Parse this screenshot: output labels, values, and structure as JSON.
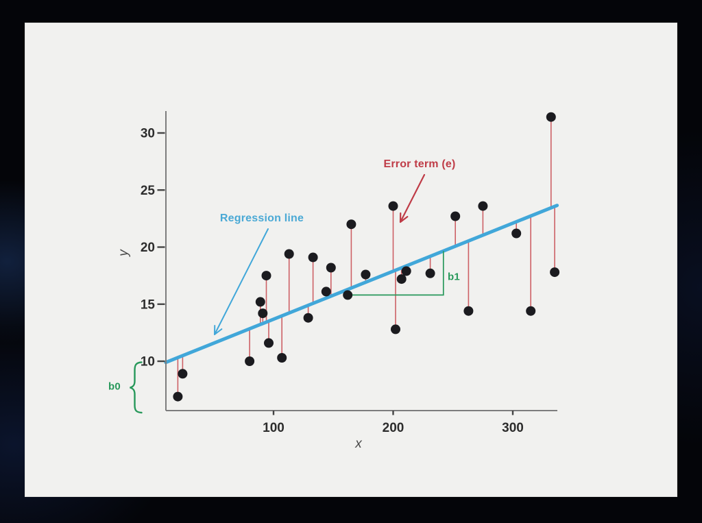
{
  "colors": {
    "background": "#040509",
    "card": "#f1f1ef",
    "line_blue": "#41a7d9",
    "label_blue": "#4aa9d5",
    "residual_red": "#cd6065",
    "annotation_red": "#bf3c47",
    "green": "#27985a",
    "dot": "#1b1b1f",
    "axis": "#7d7d7d",
    "tick_text": "#2d2d2d"
  },
  "chart_data": {
    "type": "scatter",
    "title": "",
    "xlabel": "x",
    "ylabel": "y",
    "x_ticks": [
      100,
      200,
      300
    ],
    "y_ticks": [
      10,
      15,
      20,
      25,
      30
    ],
    "xlim": [
      10,
      337
    ],
    "ylim": [
      5.7,
      31.9
    ],
    "grid": false,
    "legend": "none",
    "points": [
      [
        20,
        6.9
      ],
      [
        24,
        8.9
      ],
      [
        80,
        10.0
      ],
      [
        89,
        15.2
      ],
      [
        91,
        14.2
      ],
      [
        94,
        17.5
      ],
      [
        96,
        11.6
      ],
      [
        107,
        10.3
      ],
      [
        113,
        19.4
      ],
      [
        129,
        13.8
      ],
      [
        133,
        19.1
      ],
      [
        144,
        16.1
      ],
      [
        148,
        18.2
      ],
      [
        162,
        15.8
      ],
      [
        165,
        22.0
      ],
      [
        177,
        17.6
      ],
      [
        200,
        23.6
      ],
      [
        202,
        12.8
      ],
      [
        207,
        17.2
      ],
      [
        211,
        17.9
      ],
      [
        231,
        17.7
      ],
      [
        252,
        22.7
      ],
      [
        263,
        14.4
      ],
      [
        275,
        23.6
      ],
      [
        303,
        21.2
      ],
      [
        315,
        14.4
      ],
      [
        332,
        31.4
      ],
      [
        335,
        17.8
      ]
    ],
    "regression_line": {
      "x1": 10,
      "y1": 9.9,
      "x2": 337,
      "y2": 23.65
    },
    "residuals_shown": true,
    "b1_bracket": {
      "from_point": [
        162,
        15.8
      ],
      "corner_x": 242
    },
    "annotations": {
      "regression": {
        "text": "Regression line"
      },
      "error": {
        "text": "Error term (e)"
      },
      "b0": {
        "text": "b0"
      },
      "b1": {
        "text": "b1"
      }
    }
  }
}
